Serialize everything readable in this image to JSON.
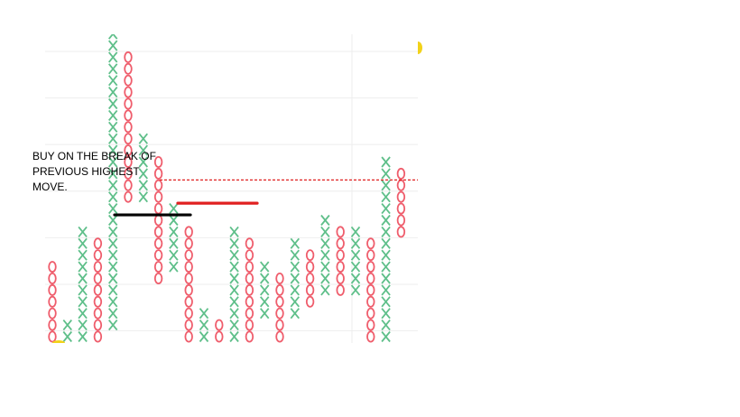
{
  "chart_data": {
    "type": "point-and-figure",
    "symbols": {
      "up": "X",
      "down": "O"
    },
    "colors": {
      "up": "#5fbf8a",
      "down": "#ef5d6c",
      "support_line": "#000000",
      "resistance_line": "#e02020",
      "breakout_line": "#e02020",
      "grid": "#eeeeee",
      "marker": "#f2d21a"
    },
    "grid": true,
    "box_levels": 30,
    "columns": [
      {
        "type": "O",
        "low": 0,
        "high": 6
      },
      {
        "type": "X",
        "low": 0,
        "high": 1
      },
      {
        "type": "X",
        "low": 0,
        "high": 9
      },
      {
        "type": "O",
        "low": 0,
        "high": 8
      },
      {
        "type": "X",
        "low": 1,
        "high": 26
      },
      {
        "type": "O",
        "low": 12,
        "high": 24
      },
      {
        "type": "X",
        "low": 12,
        "high": 17
      },
      {
        "type": "O",
        "low": 5,
        "high": 15
      },
      {
        "type": "X",
        "low": 6,
        "high": 11
      },
      {
        "type": "O",
        "low": 0,
        "high": 9
      },
      {
        "type": "X",
        "low": 0,
        "high": 2
      },
      {
        "type": "O",
        "low": 0,
        "high": 1
      },
      {
        "type": "X",
        "low": 0,
        "high": 9
      },
      {
        "type": "O",
        "low": 0,
        "high": 8
      },
      {
        "type": "X",
        "low": 2,
        "high": 6
      },
      {
        "type": "O",
        "low": 0,
        "high": 5
      },
      {
        "type": "X",
        "low": 2,
        "high": 8
      },
      {
        "type": "O",
        "low": 3,
        "high": 7
      },
      {
        "type": "X",
        "low": 4,
        "high": 10
      },
      {
        "type": "O",
        "low": 4,
        "high": 9
      },
      {
        "type": "X",
        "low": 4,
        "high": 9
      },
      {
        "type": "O",
        "low": 0,
        "high": 8
      },
      {
        "type": "X",
        "low": 0,
        "high": 15
      },
      {
        "type": "O",
        "low": 9,
        "high": 14
      }
    ],
    "reference_lines": [
      {
        "kind": "support",
        "level": 10.5
      },
      {
        "kind": "resistance",
        "level": 11.5
      },
      {
        "kind": "breakout",
        "level": 13.5
      }
    ]
  },
  "annotation": {
    "text": "BUY ON THE BREAK OF\nPREVIOUS HIGHEST\nMOVE."
  }
}
